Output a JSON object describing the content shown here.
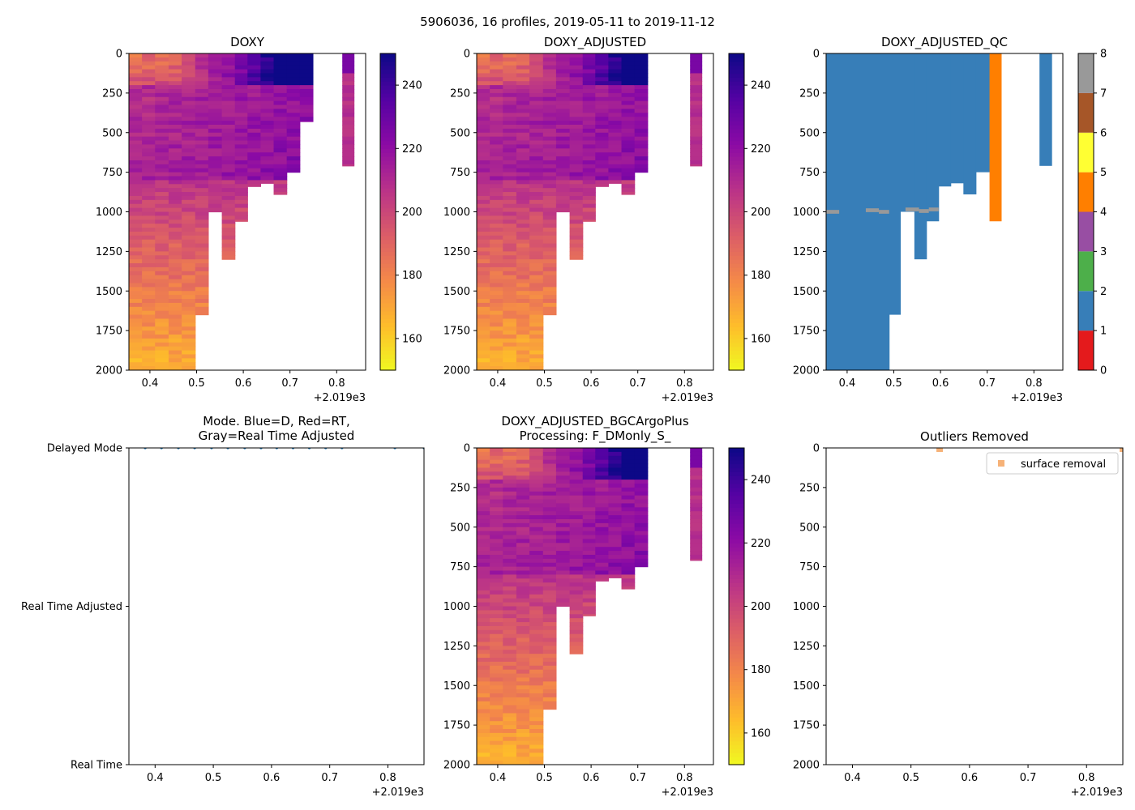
{
  "suptitle": "5906036, 16 profiles, 2019-05-11 to 2019-11-12",
  "axis_offset_label": "+2.019e3",
  "chart_data": [
    {
      "id": "doxy",
      "type": "heatmap",
      "title": "DOXY",
      "xlim": [
        0.355,
        0.862
      ],
      "xticks": [
        0.4,
        0.5,
        0.6,
        0.7,
        0.8
      ],
      "xtick_labels": [
        "0.4",
        "0.5",
        "0.6",
        "0.7",
        "0.8"
      ],
      "ylim": [
        2000,
        0
      ],
      "yticks": [
        0,
        250,
        500,
        750,
        1000,
        1250,
        1500,
        1750,
        2000
      ],
      "ytick_labels": [
        "0",
        "250",
        "500",
        "750",
        "1000",
        "1250",
        "1500",
        "1750",
        "2000"
      ],
      "colormap": "plasma_r",
      "clim": [
        150,
        250
      ],
      "colorbar_ticks": [
        160,
        180,
        200,
        220,
        240
      ],
      "colorbar_labels": [
        "160",
        "180",
        "200",
        "220",
        "240"
      ],
      "profile_times": [
        0.355,
        0.383,
        0.411,
        0.44,
        0.468,
        0.497,
        0.525,
        0.554,
        0.582,
        0.609,
        0.637,
        0.665,
        0.693,
        0.721
      ],
      "profile_max_depth": [
        2000,
        2000,
        2000,
        2000,
        2000,
        1650,
        1000,
        1300,
        1060,
        840,
        820,
        890,
        750,
        430
      ],
      "extra_profile": {
        "x0": 0.812,
        "x1": 0.838,
        "max_depth": 710
      },
      "depth_gap": 1000
    },
    {
      "id": "doxy_adjusted",
      "type": "heatmap",
      "title": "DOXY_ADJUSTED",
      "xlim": [
        0.355,
        0.862
      ],
      "xticks": [
        0.4,
        0.5,
        0.6,
        0.7,
        0.8
      ],
      "xtick_labels": [
        "0.4",
        "0.5",
        "0.6",
        "0.7",
        "0.8"
      ],
      "ylim": [
        2000,
        0
      ],
      "yticks": [
        0,
        250,
        500,
        750,
        1000,
        1250,
        1500,
        1750,
        2000
      ],
      "ytick_labels": [
        "0",
        "250",
        "500",
        "750",
        "1000",
        "1250",
        "1500",
        "1750",
        "2000"
      ],
      "colormap": "plasma_r",
      "clim": [
        150,
        250
      ],
      "colorbar_ticks": [
        160,
        180,
        200,
        220,
        240
      ],
      "colorbar_labels": [
        "160",
        "180",
        "200",
        "220",
        "240"
      ],
      "profile_times": [
        0.355,
        0.383,
        0.411,
        0.44,
        0.468,
        0.497,
        0.525,
        0.554,
        0.582,
        0.609,
        0.637,
        0.665,
        0.693
      ],
      "profile_max_depth": [
        2000,
        2000,
        2000,
        2000,
        2000,
        1650,
        1000,
        1300,
        1060,
        840,
        820,
        890,
        750
      ],
      "extra_profile": {
        "x0": 0.812,
        "x1": 0.838,
        "max_depth": 710
      },
      "depth_gap": 1000
    },
    {
      "id": "doxy_adjusted_qc",
      "type": "heatmap",
      "title": "DOXY_ADJUSTED_QC",
      "xlim": [
        0.355,
        0.862
      ],
      "xticks": [
        0.4,
        0.5,
        0.6,
        0.7,
        0.8
      ],
      "xtick_labels": [
        "0.4",
        "0.5",
        "0.6",
        "0.7",
        "0.8"
      ],
      "ylim": [
        2000,
        0
      ],
      "yticks": [
        0,
        250,
        500,
        750,
        1000,
        1250,
        1500,
        1750,
        2000
      ],
      "ytick_labels": [
        "0",
        "250",
        "500",
        "750",
        "1000",
        "1250",
        "1500",
        "1750",
        "2000"
      ],
      "qc_colors": [
        "#e41a1c",
        "#377eb8",
        "#4daf4a",
        "#984ea3",
        "#ff7f00",
        "#ffff33",
        "#a65628",
        "#f781bf",
        "#999999"
      ],
      "colorbar_ticks": [
        0,
        1,
        2,
        3,
        4,
        5,
        6,
        7,
        8
      ],
      "colorbar_labels": [
        "0",
        "1",
        "2",
        "3",
        "4",
        "5",
        "6",
        "7",
        "8"
      ],
      "qc_columns": [
        {
          "x0": 0.355,
          "x1": 0.49,
          "max_depth": 2000,
          "flag": 1
        },
        {
          "x0": 0.49,
          "x1": 0.514,
          "max_depth": 1650,
          "flag": 1
        },
        {
          "x0": 0.514,
          "x1": 0.544,
          "max_depth": 1000,
          "flag": 1
        },
        {
          "x0": 0.544,
          "x1": 0.57,
          "max_depth": 1300,
          "flag": 1
        },
        {
          "x0": 0.57,
          "x1": 0.596,
          "max_depth": 1060,
          "flag": 1
        },
        {
          "x0": 0.596,
          "x1": 0.622,
          "max_depth": 840,
          "flag": 1
        },
        {
          "x0": 0.622,
          "x1": 0.649,
          "max_depth": 820,
          "flag": 1
        },
        {
          "x0": 0.649,
          "x1": 0.676,
          "max_depth": 890,
          "flag": 1
        },
        {
          "x0": 0.676,
          "x1": 0.705,
          "max_depth": 750,
          "flag": 1
        },
        {
          "x0": 0.705,
          "x1": 0.73,
          "max_depth": 1060,
          "flag": 4
        },
        {
          "x0": 0.812,
          "x1": 0.838,
          "max_depth": 710,
          "flag": 1
        }
      ],
      "qc_gaps": [
        {
          "x0": 0.355,
          "x1": 0.383,
          "depth": 1000,
          "flag": 8
        },
        {
          "x0": 0.44,
          "x1": 0.468,
          "depth": 990,
          "flag": 8
        },
        {
          "x0": 0.468,
          "x1": 0.49,
          "depth": 1000,
          "flag": 8
        },
        {
          "x0": 0.525,
          "x1": 0.554,
          "depth": 985,
          "flag": 8
        },
        {
          "x0": 0.554,
          "x1": 0.575,
          "depth": 995,
          "flag": 8
        },
        {
          "x0": 0.575,
          "x1": 0.596,
          "depth": 985,
          "flag": 8
        }
      ]
    },
    {
      "id": "mode",
      "type": "scatter",
      "title": "Mode. Blue=D, Red=RT,\nGray=Real Time Adjusted",
      "title_lines": [
        "Mode. Blue=D, Red=RT,",
        "Gray=Real Time Adjusted"
      ],
      "xlim": [
        0.355,
        0.862
      ],
      "xticks": [
        0.4,
        0.5,
        0.6,
        0.7,
        0.8
      ],
      "xtick_labels": [
        "0.4",
        "0.5",
        "0.6",
        "0.7",
        "0.8"
      ],
      "ylim": [
        0,
        2
      ],
      "yticks": [
        2,
        1,
        0
      ],
      "ytick_labels": [
        "Delayed Mode",
        "Real Time Adjusted",
        "Real Time"
      ],
      "series": [
        {
          "name": "Delayed Mode",
          "color": "#1f77b4",
          "x": [
            0.383,
            0.411,
            0.44,
            0.468,
            0.497,
            0.525,
            0.554,
            0.582,
            0.609,
            0.637,
            0.665,
            0.693,
            0.721,
            0.812,
            0.862
          ],
          "y": [
            2,
            2,
            2,
            2,
            2,
            2,
            2,
            2,
            2,
            2,
            2,
            2,
            2,
            2,
            2
          ]
        }
      ]
    },
    {
      "id": "doxy_bgcargoplus",
      "type": "heatmap",
      "title": "DOXY_ADJUSTED_BGCArgoPlus\nProcessing: F_DMonly_S_",
      "title_lines": [
        "DOXY_ADJUSTED_BGCArgoPlus",
        "Processing: F_DMonly_S_"
      ],
      "xlim": [
        0.355,
        0.862
      ],
      "xticks": [
        0.4,
        0.5,
        0.6,
        0.7,
        0.8
      ],
      "xtick_labels": [
        "0.4",
        "0.5",
        "0.6",
        "0.7",
        "0.8"
      ],
      "ylim": [
        2000,
        0
      ],
      "yticks": [
        0,
        250,
        500,
        750,
        1000,
        1250,
        1500,
        1750,
        2000
      ],
      "ytick_labels": [
        "0",
        "250",
        "500",
        "750",
        "1000",
        "1250",
        "1500",
        "1750",
        "2000"
      ],
      "colormap": "plasma_r",
      "clim": [
        150,
        250
      ],
      "colorbar_ticks": [
        160,
        180,
        200,
        220,
        240
      ],
      "colorbar_labels": [
        "160",
        "180",
        "200",
        "220",
        "240"
      ],
      "profile_times": [
        0.355,
        0.383,
        0.411,
        0.44,
        0.468,
        0.497,
        0.525,
        0.554,
        0.582,
        0.609,
        0.637,
        0.665,
        0.693
      ],
      "profile_max_depth": [
        2000,
        2000,
        2000,
        2000,
        2000,
        1650,
        1000,
        1300,
        1060,
        840,
        820,
        890,
        750
      ],
      "extra_profile": {
        "x0": 0.812,
        "x1": 0.838,
        "max_depth": 710
      },
      "depth_gap": 1000
    },
    {
      "id": "outliers",
      "type": "scatter",
      "title": "Outliers Removed",
      "xlim": [
        0.355,
        0.862
      ],
      "xticks": [
        0.4,
        0.5,
        0.6,
        0.7,
        0.8
      ],
      "xtick_labels": [
        "0.4",
        "0.5",
        "0.6",
        "0.7",
        "0.8"
      ],
      "ylim": [
        2000,
        0
      ],
      "yticks": [
        0,
        250,
        500,
        750,
        1000,
        1250,
        1500,
        1750,
        2000
      ],
      "ytick_labels": [
        "0",
        "250",
        "500",
        "750",
        "1000",
        "1250",
        "1500",
        "1750",
        "2000"
      ],
      "legend": "upper right",
      "series": [
        {
          "name": "surface removal",
          "color": "#f4a460",
          "x": [
            0.549,
            0.862
          ],
          "y": [
            5,
            5
          ]
        }
      ]
    }
  ]
}
